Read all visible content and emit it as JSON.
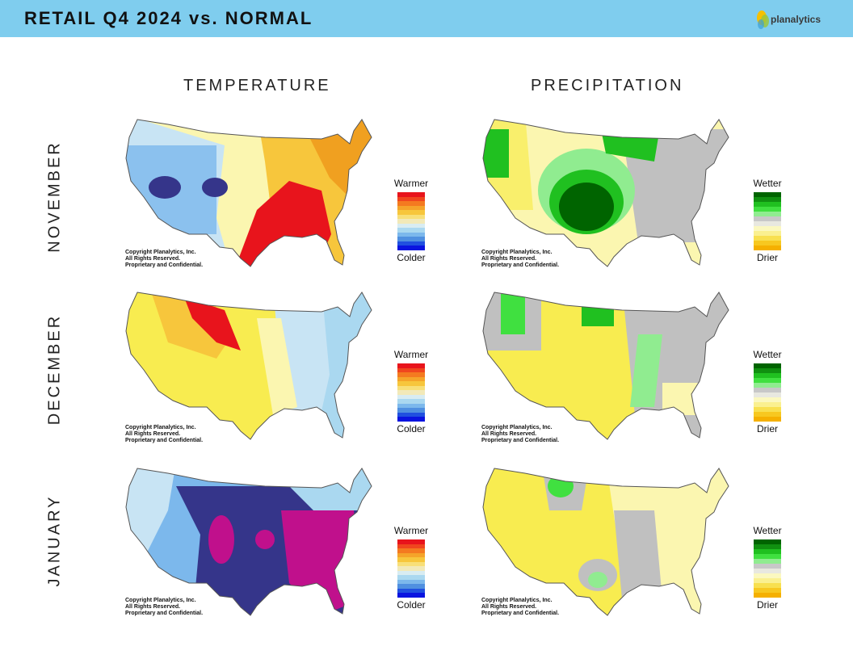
{
  "header": {
    "title": "RETAIL Q4 2024 vs. NORMAL",
    "logo_text": "planalytics"
  },
  "columns": {
    "temperature": "TEMPERATURE",
    "precipitation": "PRECIPITATION"
  },
  "rows": {
    "nov": "NOVEMBER",
    "dec": "DECEMBER",
    "jan": "JANUARY"
  },
  "copyright": {
    "line1": "Copyright Planalytics, Inc.",
    "line2": "All Rights Reserved.",
    "line3": "Proprietary and Confidential."
  },
  "legend_temp": {
    "top": "Warmer",
    "bottom": "Colder",
    "colors": [
      "#e8141c",
      "#f0461e",
      "#f47a20",
      "#f5a42a",
      "#f7c63c",
      "#f8df78",
      "#f2e9b8",
      "#d8ecf2",
      "#aad8f0",
      "#7cb8ec",
      "#5090e0",
      "#2050e0",
      "#0a14e0"
    ]
  },
  "legend_precip": {
    "top": "Wetter",
    "bottom": "Drier",
    "colors": [
      "#006400",
      "#109010",
      "#20c020",
      "#40e040",
      "#90ec90",
      "#c8c8c8",
      "#e8e8e0",
      "#fbf8c0",
      "#faf090",
      "#f8e050",
      "#f7c820",
      "#f5b000"
    ]
  },
  "colors": {
    "header_bg": "#7fcdee",
    "cold_deep": "#35358a",
    "cold_mid": "#6a9ee0",
    "cold_light": "#c8e4f4",
    "warm_light": "#fbf6b0",
    "warm_mid": "#f7c63c",
    "warm_deep": "#f0a020",
    "hot": "#e8141c",
    "magenta": "#c0108c",
    "wet_deep": "#006400",
    "wet_mid": "#20c020",
    "wet_light": "#90ec90",
    "neutral": "#c0c0c0",
    "dry_light": "#fbf6b0",
    "dry_mid": "#f8ec50",
    "dry_deep": "#f5c000"
  }
}
